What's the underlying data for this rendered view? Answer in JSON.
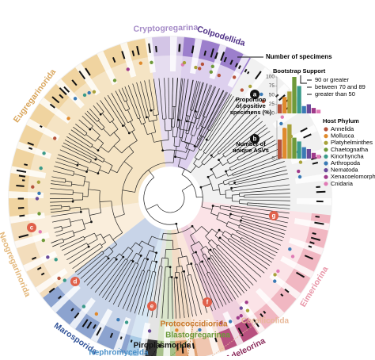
{
  "clades": [
    "Cryptogregarina",
    "Colpodellida",
    "Eugregarinorida",
    "Neogregarinorida",
    "Marosporida",
    "Nephromyceida",
    "Piroplasmorida",
    "Blastogregarinea",
    "Protococcidiorida",
    "Corallicolida",
    "Adeleorina",
    "Eimeriorina"
  ],
  "markers": [
    "a",
    "b",
    "c",
    "d",
    "e",
    "f",
    "g"
  ],
  "legend": {
    "specimens": "Number of specimens",
    "bootstrap": {
      "title": "Bootstrap Support",
      "items": [
        "90 or greater",
        "between 70 and 89",
        "greater than 50"
      ]
    },
    "proportion": {
      "lines": [
        "Proportion",
        "of positive",
        "specimens (%)"
      ],
      "ylim": [
        0,
        100
      ],
      "yticks": [
        0,
        25,
        50,
        75,
        100
      ],
      "values": [
        25,
        45,
        60,
        100,
        75,
        20,
        25,
        15,
        10
      ]
    },
    "asvs": {
      "lines": [
        "Number of",
        "unique ASVs"
      ],
      "ylim": [
        0,
        40
      ],
      "yticks": [
        0
      ],
      "values": [
        20,
        32,
        36,
        22,
        18,
        12,
        10,
        6,
        4
      ]
    },
    "host": {
      "title": "Host Phylum",
      "items": [
        {
          "name": "Annelida",
          "color": "#b5533c"
        },
        {
          "name": "Mollusca",
          "color": "#e08a2c"
        },
        {
          "name": "Platyhelminthes",
          "color": "#a8a23a"
        },
        {
          "name": "Chaetognatha",
          "color": "#6f9a3a"
        },
        {
          "name": "Kinorhyncha",
          "color": "#3a9a8a"
        },
        {
          "name": "Arthropoda",
          "color": "#3a7ab5"
        },
        {
          "name": "Nematoda",
          "color": "#6a4a9a"
        },
        {
          "name": "Xenacoelomorpha",
          "color": "#a03a8a"
        },
        {
          "name": "Cnidaria",
          "color": "#e07ab5"
        }
      ]
    }
  }
}
